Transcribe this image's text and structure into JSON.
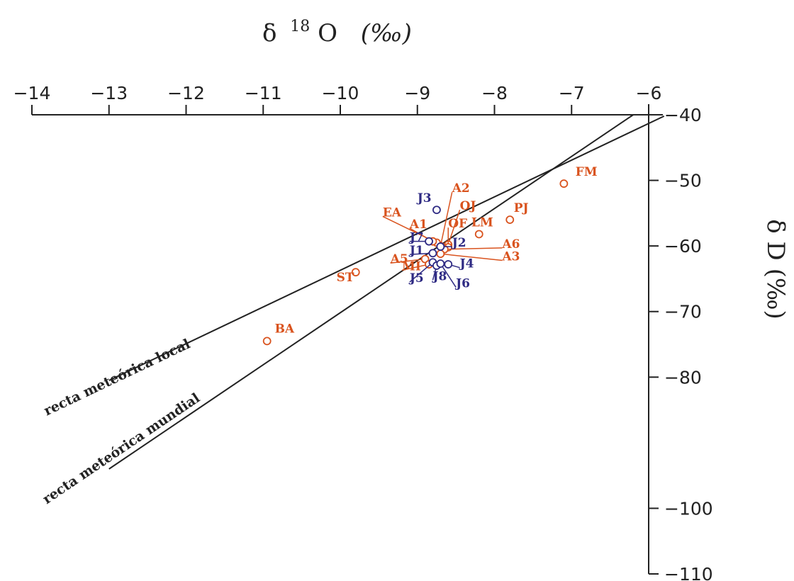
{
  "chart_data": {
    "type": "scatter",
    "x_axis": {
      "label": "δ ¹⁸O (‰)",
      "label_delta": "δ",
      "label_sup": "18",
      "label_rest": "O",
      "label_unit": "(‰)",
      "position": "top",
      "range": [
        -14,
        -6
      ],
      "ticks": [
        -14,
        -13,
        -12,
        -11,
        -10,
        -9,
        -8,
        -7,
        -6
      ],
      "tick_labels": [
        "−14",
        "−13",
        "−12",
        "−11",
        "−10",
        "−9",
        "−8",
        "−7",
        "−6"
      ]
    },
    "y_axis": {
      "label": "δ D (‰)",
      "position": "right",
      "range": [
        -110,
        -40
      ],
      "ticks": [
        -40,
        -50,
        -60,
        -70,
        -80,
        -100,
        -110
      ],
      "tick_labels": [
        "−40",
        "−50",
        "−60",
        "−70",
        "−80",
        "−100",
        "−110"
      ]
    },
    "colors": {
      "orange": "#d9531e",
      "blue": "#2e2a83",
      "axis": "#222222"
    },
    "lines": [
      {
        "label": "recta meteórica local",
        "label_text": "recta meteórica local",
        "x": [
          -13,
          -5.8
        ],
        "y": [
          -80.5,
          -40.2
        ]
      },
      {
        "label": "recta meteórica mundial",
        "label_text": "recta meteórica mundial",
        "x": [
          -13,
          -6.2
        ],
        "y": [
          -94,
          -40
        ]
      }
    ],
    "points": [
      {
        "label": "FM",
        "x": -7.1,
        "y": -50.5,
        "color": "orange",
        "lx": -6.95,
        "ly": -49.3,
        "leader": false
      },
      {
        "label": "PJ",
        "x": -7.8,
        "y": -56,
        "color": "orange",
        "lx": -7.75,
        "ly": -54.8,
        "leader": false
      },
      {
        "label": "LM",
        "x": -8.2,
        "y": -58.2,
        "color": "orange",
        "lx": -8.3,
        "ly": -57,
        "leader": false
      },
      {
        "label": "BA",
        "x": -10.95,
        "y": -74.5,
        "color": "orange",
        "lx": -10.85,
        "ly": -73.2,
        "leader": false
      },
      {
        "label": "ST",
        "x": -9.8,
        "y": -64,
        "color": "orange",
        "lx": -10.05,
        "ly": -65.4,
        "leader": false
      },
      {
        "label": "A2",
        "x": -8.7,
        "y": -60,
        "color": "orange",
        "lx": -8.55,
        "ly": -51.8,
        "leader": true
      },
      {
        "label": "EA",
        "x": -8.75,
        "y": -59.5,
        "color": "orange",
        "lx": -9.45,
        "ly": -55.5,
        "leader": true
      },
      {
        "label": "OJ",
        "x": -8.6,
        "y": -59.8,
        "color": "orange",
        "lx": -8.45,
        "ly": -54.5,
        "leader": true
      },
      {
        "label": "OF",
        "x": -8.6,
        "y": -60.2,
        "color": "orange",
        "lx": -8.6,
        "ly": -57.2,
        "leader": true
      },
      {
        "label": "A1",
        "x": -8.8,
        "y": -59.3,
        "color": "orange",
        "lx": -9.1,
        "ly": -57.3,
        "leader": true
      },
      {
        "label": "A6",
        "x": -8.65,
        "y": -60.5,
        "color": "orange",
        "lx": -7.9,
        "ly": -60.3,
        "leader": true
      },
      {
        "label": "A3",
        "x": -8.7,
        "y": -61.2,
        "color": "orange",
        "lx": -7.9,
        "ly": -62.2,
        "leader": true
      },
      {
        "label": "A5",
        "x": -8.9,
        "y": -62,
        "color": "orange",
        "lx": -9.35,
        "ly": -62.6,
        "leader": true
      },
      {
        "label": "MI",
        "x": -8.85,
        "y": -62.8,
        "color": "orange",
        "lx": -9.2,
        "ly": -63.7,
        "leader": true
      },
      {
        "label": "J3",
        "x": -8.75,
        "y": -54.5,
        "color": "blue",
        "lx": -9,
        "ly": -53.3,
        "leader": false
      },
      {
        "label": "J7",
        "x": -8.85,
        "y": -59.3,
        "color": "blue",
        "lx": -9.1,
        "ly": -59.3,
        "leader": true
      },
      {
        "label": "J2",
        "x": -8.7,
        "y": -60.1,
        "color": "blue",
        "lx": -8.55,
        "ly": -60.1,
        "leader": true
      },
      {
        "label": "J1",
        "x": -8.8,
        "y": -61.1,
        "color": "blue",
        "lx": -9.1,
        "ly": -61.3,
        "leader": true
      },
      {
        "label": "J4",
        "x": -8.6,
        "y": -62.8,
        "color": "blue",
        "lx": -8.45,
        "ly": -63.3,
        "leader": true
      },
      {
        "label": "J5",
        "x": -8.8,
        "y": -62.5,
        "color": "blue",
        "lx": -9.1,
        "ly": -65.5,
        "leader": true
      },
      {
        "label": "J8",
        "x": -8.75,
        "y": -63,
        "color": "blue",
        "lx": -8.8,
        "ly": -65.2,
        "leader": true
      },
      {
        "label": "J6",
        "x": -8.7,
        "y": -62.7,
        "color": "blue",
        "lx": -8.5,
        "ly": -66.3,
        "leader": true
      }
    ]
  }
}
